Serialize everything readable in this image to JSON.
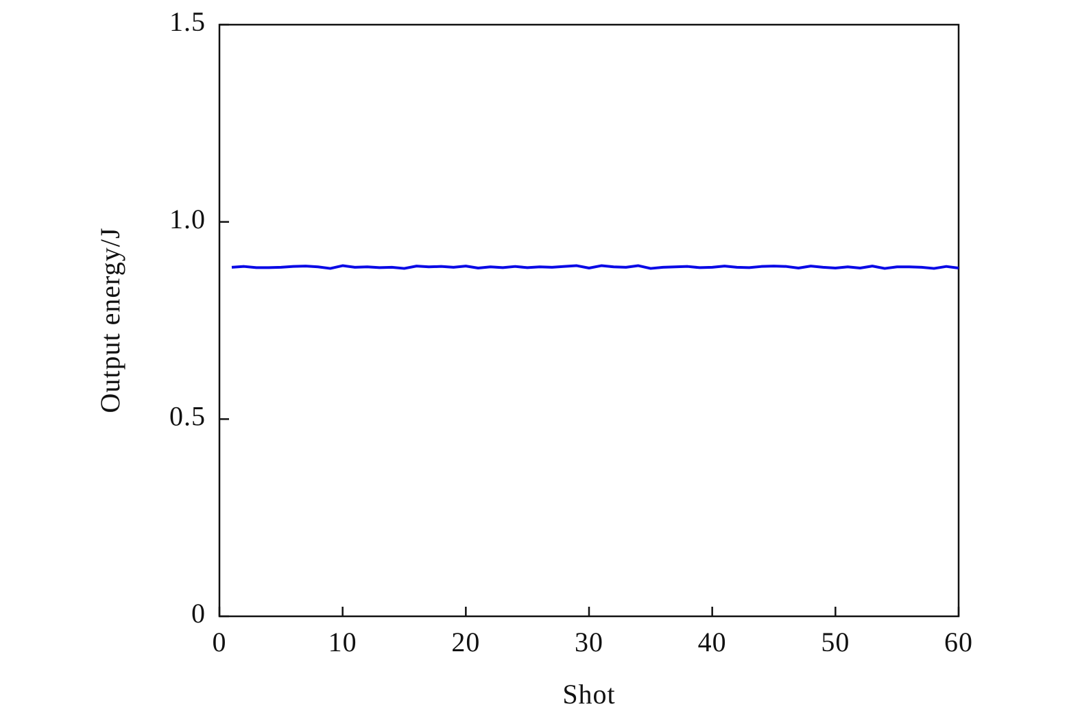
{
  "chart_data": {
    "type": "line",
    "xlabel": "Shot",
    "ylabel": "Output energy/J",
    "x": [
      1,
      2,
      3,
      4,
      5,
      6,
      7,
      8,
      9,
      10,
      11,
      12,
      13,
      14,
      15,
      16,
      17,
      18,
      19,
      20,
      21,
      22,
      23,
      24,
      25,
      26,
      27,
      28,
      29,
      30,
      31,
      32,
      33,
      34,
      35,
      36,
      37,
      38,
      39,
      40,
      41,
      42,
      43,
      44,
      45,
      46,
      47,
      48,
      49,
      50,
      51,
      52,
      53,
      54,
      55,
      56,
      57,
      58,
      59,
      60
    ],
    "series": [
      {
        "name": "Output energy",
        "color": "#0a0ae6",
        "values": [
          0.885,
          0.887,
          0.884,
          0.884,
          0.885,
          0.887,
          0.888,
          0.886,
          0.882,
          0.889,
          0.885,
          0.886,
          0.884,
          0.885,
          0.882,
          0.888,
          0.886,
          0.887,
          0.885,
          0.888,
          0.883,
          0.886,
          0.884,
          0.887,
          0.884,
          0.886,
          0.885,
          0.887,
          0.889,
          0.883,
          0.889,
          0.886,
          0.885,
          0.889,
          0.882,
          0.885,
          0.886,
          0.887,
          0.884,
          0.885,
          0.888,
          0.885,
          0.884,
          0.887,
          0.888,
          0.887,
          0.883,
          0.888,
          0.885,
          0.883,
          0.886,
          0.883,
          0.888,
          0.882,
          0.886,
          0.886,
          0.885,
          0.882,
          0.887,
          0.883
        ]
      }
    ],
    "xlim": [
      0,
      60
    ],
    "xticks": [
      0,
      10,
      20,
      30,
      40,
      50,
      60
    ],
    "ylim": [
      0,
      1.5
    ],
    "yticks": [
      0,
      0.5,
      {
        "value": 1,
        "label": "1.0"
      },
      1.5
    ],
    "grid": false
  }
}
